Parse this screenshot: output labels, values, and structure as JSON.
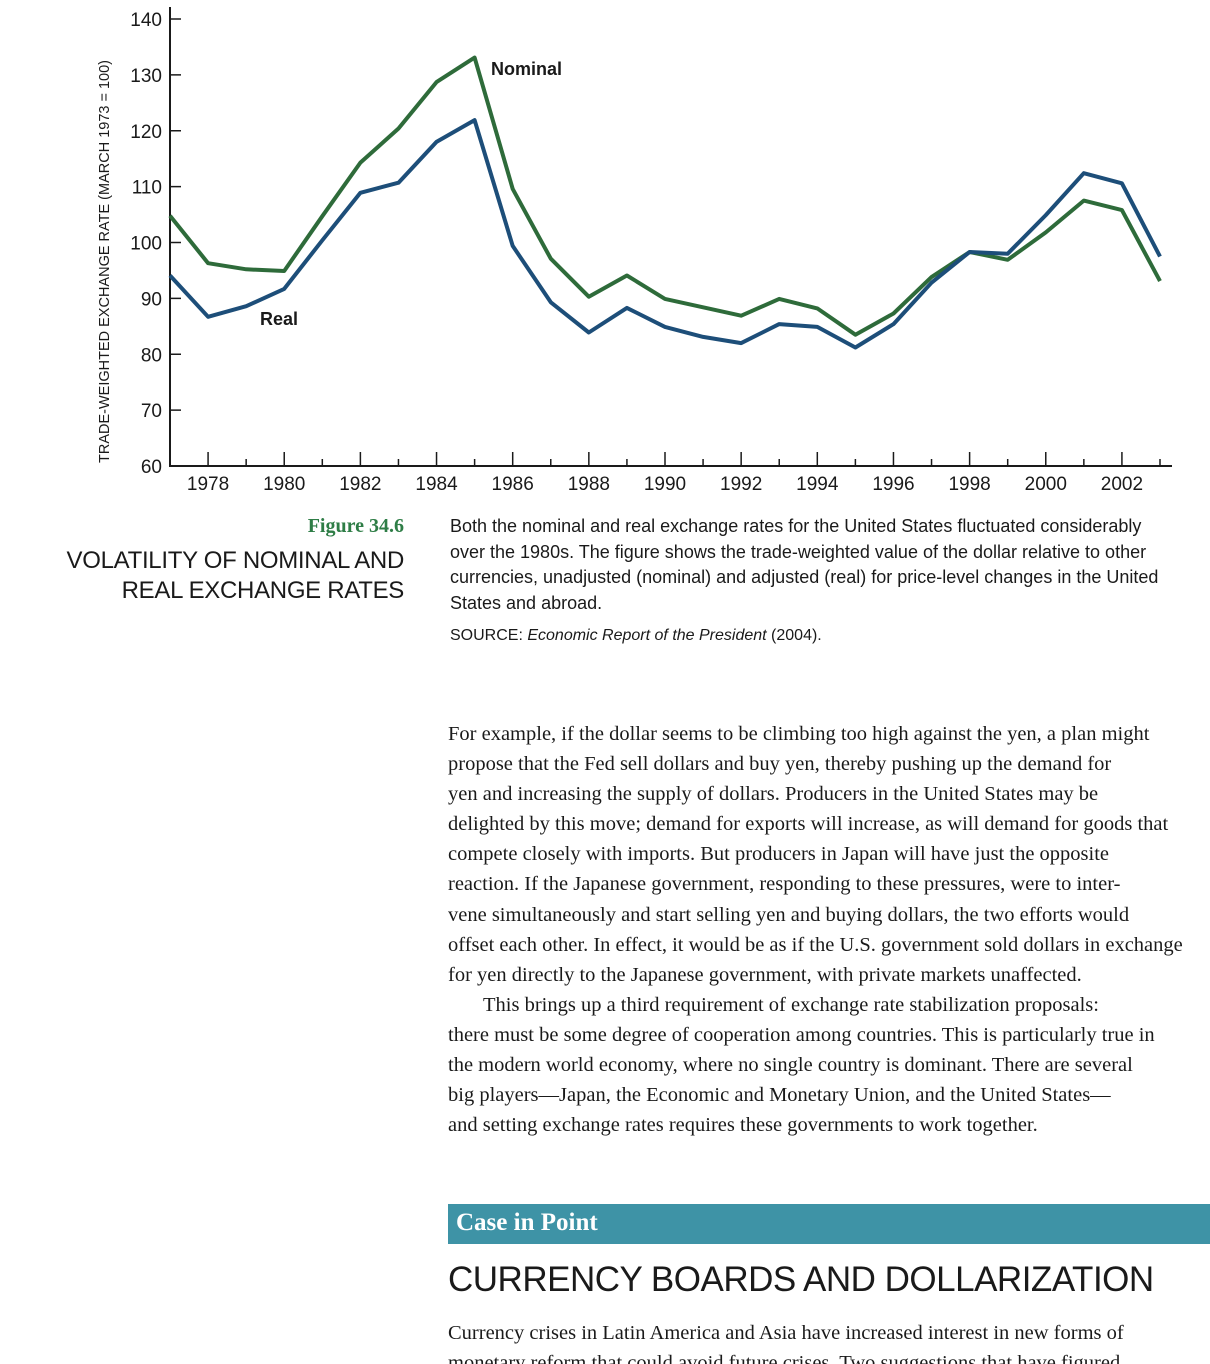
{
  "chart_data": {
    "type": "line",
    "ylabel": "TRADE-WEIGHTED EXCHANGE RATE (MARCH 1973 = 100)",
    "ylim": [
      60,
      140
    ],
    "yticks": [
      60,
      70,
      80,
      90,
      100,
      110,
      120,
      130,
      140
    ],
    "xlim": [
      1977,
      2003.3
    ],
    "xticks": [
      1978,
      1980,
      1982,
      1984,
      1986,
      1988,
      1990,
      1992,
      1994,
      1996,
      1998,
      2000,
      2002
    ],
    "xtick_labels": [
      "1978",
      "1980",
      "1982",
      "1984",
      "1986",
      "1988",
      "1990",
      "1992",
      "1994",
      "1996",
      "1998",
      "2000",
      "2002"
    ],
    "x": [
      1977,
      1978,
      1979,
      1980,
      1981,
      1982,
      1983,
      1984,
      1985,
      1986,
      1987,
      1988,
      1989,
      1990,
      1991,
      1992,
      1993,
      1994,
      1995,
      1996,
      1997,
      1998,
      1999,
      2000,
      2001,
      2002,
      2003
    ],
    "series": [
      {
        "name": "Nominal",
        "color": "#2e6b3a",
        "values": [
          104.8,
          96.3,
          95.2,
          94.9,
          104.7,
          114.3,
          120.4,
          128.7,
          133.1,
          109.6,
          97.1,
          90.3,
          94.1,
          89.9,
          88.4,
          86.9,
          89.9,
          88.2,
          83.5,
          87.3,
          93.8,
          98.3,
          96.9,
          101.8,
          107.5,
          105.8,
          93.1
        ]
      },
      {
        "name": "Real",
        "color": "#1d4e79",
        "values": [
          94.1,
          86.7,
          88.6,
          91.7,
          100.4,
          108.9,
          110.7,
          118.0,
          121.9,
          99.4,
          89.3,
          83.9,
          88.3,
          84.9,
          83.1,
          82.0,
          85.4,
          84.9,
          81.2,
          85.4,
          92.8,
          98.3,
          98.0,
          104.9,
          112.4,
          110.6,
          97.5
        ]
      }
    ]
  },
  "figure": {
    "number": "Figure 34.6",
    "title_lines": [
      "VOLATILITY OF NOMINAL AND",
      "REAL EXCHANGE RATES"
    ],
    "caption_lines": [
      "Both the nominal and real exchange rates for the United States fluctuated considerably",
      "over the 1980s. The figure shows the trade-weighted value of the dollar relative to other",
      "currencies, unadjusted (nominal) and adjusted (real) for price-level changes in the United",
      "States and abroad."
    ],
    "source_label": "SOURCE:",
    "source_title": "Economic Report of the President",
    "source_year": "(2004)."
  },
  "body": {
    "para1_lines": [
      "For example, if the dollar seems to be climbing too high against the yen, a plan might",
      "propose that the Fed sell dollars and buy yen, thereby pushing up the demand for",
      "yen and increasing the supply of dollars. Producers in the United States may be",
      "delighted by this move; demand for exports will increase, as will demand for goods that",
      "compete closely with imports. But producers in Japan will have just the opposite",
      "reaction. If the Japanese government, responding to these pressures, were to inter-",
      "vene simultaneously and start selling yen and buying dollars, the two efforts would",
      "offset each other. In effect, it would be as if the U.S. government sold dollars in exchange",
      "for yen directly to the Japanese government, with private markets unaffected."
    ],
    "para2_lines": [
      "This brings up a third requirement of exchange rate stabilization proposals:",
      "there must be some degree of cooperation among countries. This is particularly true in",
      "the modern world economy, where no single country is dominant. There are several",
      "big players—Japan, the Economic and Monetary Union, and the United States—",
      "and setting exchange rates requires these governments to work together."
    ]
  },
  "case": {
    "label": "Case in Point",
    "heading": "CURRENCY BOARDS AND DOLLARIZATION",
    "lines": [
      "Currency crises in Latin America and Asia have increased interest in new forms of",
      "monetary reform that could avoid future crises. Two suggestions that have figured"
    ]
  }
}
